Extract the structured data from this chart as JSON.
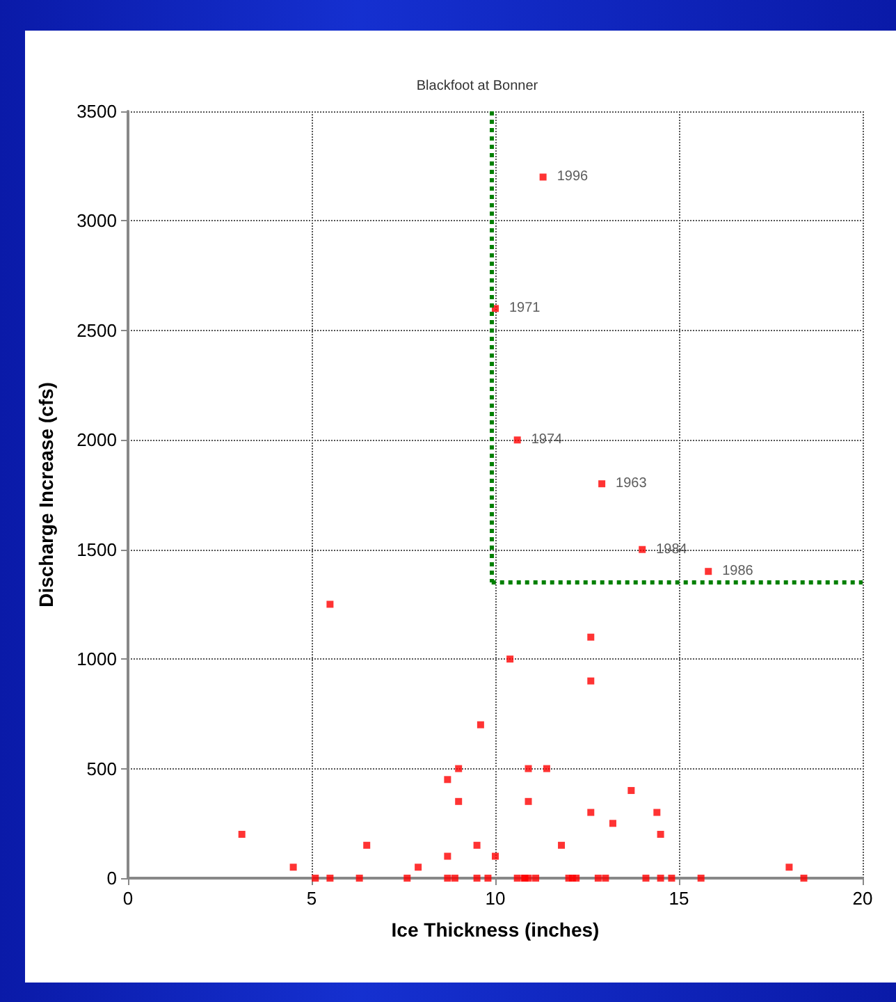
{
  "chart_data": {
    "type": "scatter",
    "title": "Blackfoot at Bonner",
    "xlabel": "Ice Thickness (inches)",
    "ylabel": "Discharge Increase (cfs)",
    "xlim": [
      0,
      20
    ],
    "xticks": [
      0,
      5,
      10,
      15,
      20
    ],
    "ylim": [
      0,
      3500
    ],
    "yticks": [
      0,
      500,
      1000,
      1500,
      2000,
      2500,
      3000,
      3500
    ],
    "grid": true,
    "marker": "square",
    "series": [
      {
        "color": "#ff0000",
        "x": [
          11.3,
          10.0,
          10.6,
          12.9,
          14.0,
          15.8,
          5.5,
          9.6,
          9.0,
          8.7,
          9.0,
          3.1,
          6.5,
          8.7,
          9.5,
          10.0,
          4.5,
          7.9,
          12.6,
          10.4,
          12.6,
          10.9,
          11.4,
          13.7,
          10.9,
          12.6,
          14.4,
          13.2,
          14.5,
          11.8,
          18.0,
          5.1,
          5.5,
          6.3,
          7.6,
          8.7,
          8.9,
          9.5,
          9.8,
          10.6,
          10.8,
          10.8,
          10.9,
          11.1,
          12.0,
          12.1,
          12.2,
          12.8,
          13.0,
          14.1,
          14.5,
          14.8,
          15.6,
          18.4
        ],
        "values": [
          3200,
          2600,
          2000,
          1800,
          1500,
          1400,
          1250,
          700,
          500,
          450,
          350,
          200,
          150,
          100,
          150,
          100,
          50,
          50,
          1100,
          1000,
          900,
          500,
          500,
          400,
          350,
          300,
          300,
          250,
          200,
          150,
          50,
          0,
          0,
          0,
          0,
          0,
          0,
          0,
          0,
          0,
          0,
          0,
          0,
          0,
          0,
          0,
          0,
          0,
          0,
          0,
          0,
          0,
          0,
          0
        ]
      }
    ],
    "ref_lines": [
      {
        "axis": "x",
        "value": 9.9,
        "color": "#008000",
        "line_style": "dotted"
      },
      {
        "axis": "y",
        "value": 1350,
        "color": "#008000",
        "line_style": "dotted"
      }
    ],
    "annotations": [
      {
        "text": "1996",
        "x": 11.3,
        "y": 3200
      },
      {
        "text": "1971",
        "x": 10.0,
        "y": 2600
      },
      {
        "text": "1974",
        "x": 10.6,
        "y": 2000
      },
      {
        "text": "1963",
        "x": 12.9,
        "y": 1800
      },
      {
        "text": "1984",
        "x": 14.0,
        "y": 1500
      },
      {
        "text": "1986",
        "x": 15.8,
        "y": 1400
      }
    ]
  }
}
